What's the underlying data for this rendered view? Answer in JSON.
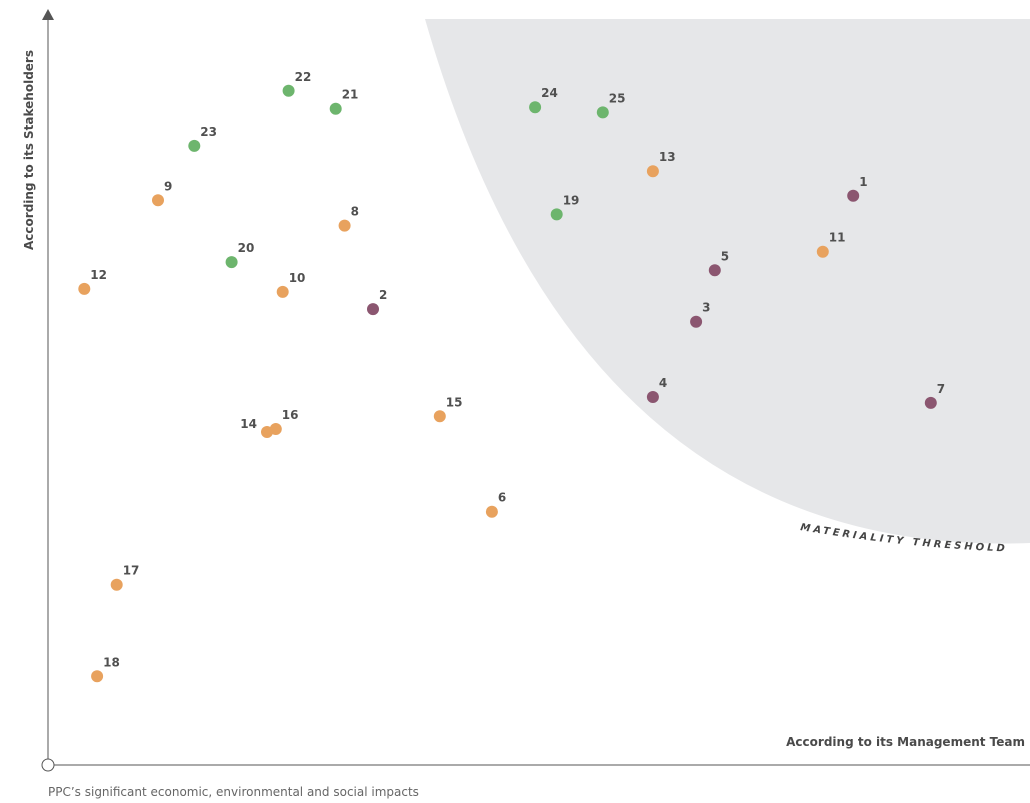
{
  "chart_data": {
    "type": "scatter",
    "xlabel": "According to its Management Team",
    "ylabel": "According to its Stakeholders",
    "caption": "PPC’s significant economic, environmental and social impacts",
    "region_label": "MATERIALITY THRESHOLD",
    "xlim": [
      0,
      100
    ],
    "ylim": [
      0,
      100
    ],
    "grid": false,
    "legend": "none",
    "colors": {
      "orange": "#E8A25E",
      "green": "#6DB56D",
      "purple": "#8B5670",
      "region": "#E6E7E9",
      "axis": "#555555"
    },
    "points": [
      {
        "label": "1",
        "x": 82.0,
        "y": 76.4,
        "color": "purple"
      },
      {
        "label": "2",
        "x": 33.1,
        "y": 61.2,
        "color": "purple"
      },
      {
        "label": "3",
        "x": 66.0,
        "y": 59.5,
        "color": "purple"
      },
      {
        "label": "4",
        "x": 61.6,
        "y": 49.4,
        "color": "purple"
      },
      {
        "label": "5",
        "x": 67.9,
        "y": 66.4,
        "color": "purple"
      },
      {
        "label": "6",
        "x": 45.2,
        "y": 34.0,
        "color": "orange"
      },
      {
        "label": "7",
        "x": 89.9,
        "y": 48.6,
        "color": "purple"
      },
      {
        "label": "8",
        "x": 30.2,
        "y": 72.4,
        "color": "orange"
      },
      {
        "label": "9",
        "x": 11.2,
        "y": 75.8,
        "color": "orange"
      },
      {
        "label": "10",
        "x": 23.9,
        "y": 63.5,
        "color": "orange"
      },
      {
        "label": "11",
        "x": 78.9,
        "y": 68.9,
        "color": "orange"
      },
      {
        "label": "12",
        "x": 3.7,
        "y": 63.9,
        "color": "orange"
      },
      {
        "label": "13",
        "x": 61.6,
        "y": 79.7,
        "color": "orange"
      },
      {
        "label": "14",
        "x": 22.3,
        "y": 44.7,
        "color": "orange"
      },
      {
        "label": "15",
        "x": 39.9,
        "y": 46.8,
        "color": "orange"
      },
      {
        "label": "16",
        "x": 23.2,
        "y": 45.1,
        "color": "orange"
      },
      {
        "label": "17",
        "x": 7.0,
        "y": 24.2,
        "color": "orange"
      },
      {
        "label": "18",
        "x": 5.0,
        "y": 11.9,
        "color": "orange"
      },
      {
        "label": "19",
        "x": 51.8,
        "y": 73.9,
        "color": "green"
      },
      {
        "label": "20",
        "x": 18.7,
        "y": 67.5,
        "color": "green"
      },
      {
        "label": "21",
        "x": 29.3,
        "y": 88.1,
        "color": "green"
      },
      {
        "label": "22",
        "x": 24.5,
        "y": 90.5,
        "color": "green"
      },
      {
        "label": "23",
        "x": 14.9,
        "y": 83.1,
        "color": "green"
      },
      {
        "label": "24",
        "x": 49.6,
        "y": 88.3,
        "color": "green"
      },
      {
        "label": "25",
        "x": 56.5,
        "y": 87.6,
        "color": "green"
      }
    ]
  }
}
